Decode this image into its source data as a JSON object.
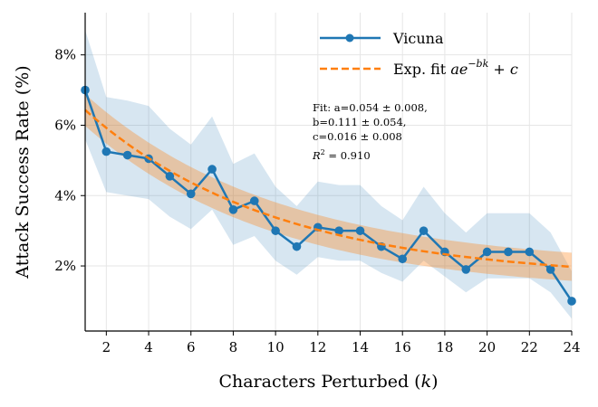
{
  "chart_data": {
    "type": "line",
    "title": "",
    "xlabel": "Characters Perturbed (",
    "xlabel_var": "k",
    "xlabel_close": ")",
    "ylabel": "Attack Success Rate (%)",
    "xlim": [
      1,
      24
    ],
    "ylim": [
      0.15,
      9.2
    ],
    "x_ticks": [
      2,
      4,
      6,
      8,
      10,
      12,
      14,
      16,
      18,
      20,
      22,
      24
    ],
    "y_ticks": [
      2,
      4,
      6,
      8
    ],
    "y_tick_labels": [
      "2%",
      "4%",
      "6%",
      "8%"
    ],
    "grid": true,
    "legend_position": "top-right",
    "series": [
      {
        "name": "Vicuna",
        "kind": "line-marker",
        "color": "#1f77b4",
        "x": [
          1,
          2,
          3,
          4,
          5,
          6,
          7,
          8,
          9,
          10,
          11,
          12,
          13,
          14,
          15,
          16,
          17,
          18,
          19,
          20,
          21,
          22,
          23,
          24
        ],
        "values": [
          7.0,
          5.25,
          5.15,
          5.05,
          4.55,
          4.05,
          4.75,
          3.6,
          3.85,
          3.0,
          2.55,
          3.1,
          3.0,
          3.0,
          2.55,
          2.2,
          3.0,
          2.4,
          1.9,
          2.4,
          2.4,
          2.4,
          1.9,
          1.0
        ],
        "ci_lower": [
          5.6,
          4.1,
          4.0,
          3.9,
          3.4,
          3.05,
          3.6,
          2.6,
          2.85,
          2.15,
          1.75,
          2.25,
          2.15,
          2.15,
          1.8,
          1.55,
          2.15,
          1.7,
          1.25,
          1.65,
          1.65,
          1.65,
          1.25,
          0.5
        ],
        "ci_upper": [
          8.7,
          6.8,
          6.7,
          6.55,
          5.9,
          5.45,
          6.25,
          4.9,
          5.2,
          4.25,
          3.7,
          4.4,
          4.3,
          4.3,
          3.7,
          3.3,
          4.25,
          3.5,
          2.95,
          3.5,
          3.5,
          3.5,
          2.95,
          1.85
        ]
      },
      {
        "name": "Exp. fit",
        "kind": "dashed-fit",
        "color": "#ff7f0e",
        "a": 0.054,
        "b": 0.111,
        "c": 0.016,
        "band_halfwidth_at_start": 0.45,
        "band_halfwidth_at_end": 0.4
      }
    ],
    "legend": [
      {
        "label": "Vicuna",
        "formula": ""
      },
      {
        "label": "Exp. fit ",
        "formula": "ae",
        "formula_sup": "−bk",
        "formula_tail": " + c"
      }
    ],
    "annotation": {
      "lines": [
        "Fit: a=0.054 ± 0.008,",
        "b=0.111 ± 0.054,",
        "c=0.016 ± 0.008"
      ],
      "r2_label": "R",
      "r2_sup": "2",
      "r2_value": " = 0.910"
    }
  },
  "colors": {
    "series_blue": "#1f77b4",
    "series_orange": "#ff7f0e",
    "ci_blue": "#1f77b4",
    "ci_orange": "#ff7f0e",
    "grid": "#e6e6e6"
  }
}
